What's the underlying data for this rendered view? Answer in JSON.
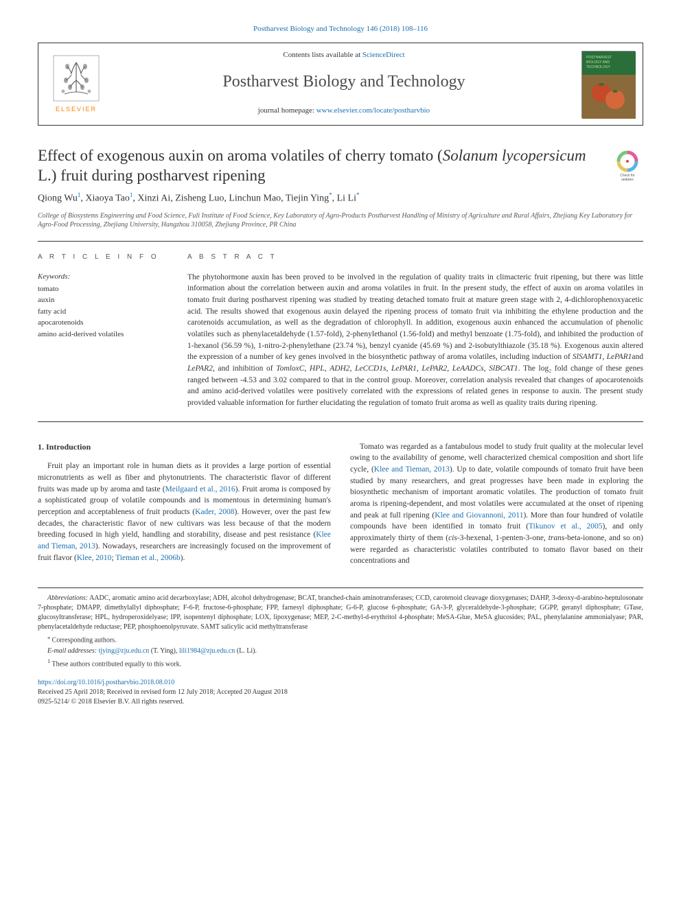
{
  "top_link": "Postharvest Biology and Technology 146 (2018) 108–116",
  "header": {
    "contents_prefix": "Contents lists available at ",
    "contents_link": "ScienceDirect",
    "journal_name": "Postharvest Biology and Technology",
    "homepage_prefix": "journal homepage: ",
    "homepage_url": "www.elsevier.com/locate/postharvbio",
    "elsevier_label": "ELSEVIER",
    "cover_text": "POSTHARVEST BIOLOGY AND TECHNOLOGY"
  },
  "title": {
    "pre": "Effect of exogenous auxin on aroma volatiles of cherry tomato (",
    "italic": "Solanum lycopersicum",
    "post": " L.) fruit during postharvest ripening"
  },
  "check_updates_label": "Check for updates",
  "authors_html": "Qiong Wu<sup>1</sup>, Xiaoya Tao<sup>1</sup>, Xinzi Ai, Zisheng Luo, Linchun Mao, Tiejin Ying<sup>*</sup>, Li Li<sup>*</sup>",
  "affiliation": "College of Biosystems Engineering and Food Science, Fuli Institute of Food Science, Key Laboratory of Agro-Products Postharvest Handling of Ministry of Agriculture and Rural Affairs, Zhejiang Key Laboratory for Agro-Food Processing, Zhejiang University, Hangzhou 310058, Zhejiang Province, PR China",
  "article_info_label": "A R T I C L E  I N F O",
  "abstract_label": "A B S T R A C T",
  "keywords_label": "Keywords:",
  "keywords": [
    "tomato",
    "auxin",
    "fatty acid",
    "apocarotenoids",
    "amino acid-derived volatiles"
  ],
  "abstract": "The phytohormone auxin has been proved to be involved in the regulation of quality traits in climacteric fruit ripening, but there was little information about the correlation between auxin and aroma volatiles in fruit. In the present study, the effect of auxin on aroma volatiles in tomato fruit during postharvest ripening was studied by treating detached tomato fruit at mature green stage with 2, 4-dichlorophenoxyacetic acid. The results showed that exogenous auxin delayed the ripening process of tomato fruit via inhibiting the ethylene production and the carotenoids accumulation, as well as the degradation of chlorophyll. In addition, exogenous auxin enhanced the accumulation of phenolic volatiles such as phenylacetaldehyde (1.57-fold), 2-phenylethanol (1.56-fold) and methyl benzoate (1.75-fold), and inhibited the production of 1-hexanol (56.59 %), 1-nitro-2-phenylethane (23.74 %), benzyl cyanide (45.69 %) and 2-isobutylthiazole (35.18 %). Exogenous auxin altered the expression of a number of key genes involved in the biosynthetic pathway of aroma volatiles, including induction of SlSAMT1, LePAR1and LePAR2, and inhibition of TomloxC, HPL, ADH2, LeCCD1s, LePAR1, LePAR2, LeAADCs, SlBCAT1. The log₂ fold change of these genes ranged between -4.53 and 3.02 compared to that in the control group. Moreover, correlation analysis revealed that changes of apocarotenoids and amino acid-derived volatiles were positively correlated with the expressions of related genes in response to auxin. The present study provided valuable information for further elucidating the regulation of tomato fruit aroma as well as quality traits during ripening.",
  "intro_heading": "1. Introduction",
  "intro_para1": "Fruit play an important role in human diets as it provides a large portion of essential micronutrients as well as fiber and phytonutrients. The characteristic flavor of different fruits was made up by aroma and taste (Meilgaard et al., 2016). Fruit aroma is composed by a sophisticated group of volatile compounds and is momentous in determining human's perception and acceptableness of fruit products (Kader, 2008). However, over the past few decades, the characteristic flavor of new cultivars was less because of that the modern breeding focused in high yield, handling and storability, disease and pest resistance (Klee and Tieman, 2013). Nowadays, researchers are increasingly focused on the improvement of fruit flavor (Klee, 2010; Tieman et al., 2006b).",
  "intro_para2": "Tomato was regarded as a fantabulous model to study fruit quality at the molecular level owing to the availability of genome, well characterized chemical composition and short life cycle, (Klee and Tieman, 2013). Up to date, volatile compounds of tomato fruit have been studied by many researchers, and great progresses have been made in exploring the biosynthetic mechanism of important aromatic volatiles. The production of tomato fruit aroma is ripening-dependent, and most volatiles were accumulated at the onset of ripening and peak at full ripening (Klee and Giovannoni, 2011). More than four hundred of volatile compounds have been identified in tomato fruit (Tikunov et al., 2005), and only approximately thirty of them (cis-3-hexenal, 1-penten-3-one, trans-beta-ionone, and so on) were regarded as characteristic volatiles contributed to tomato flavor based on their concentrations and",
  "footnotes": {
    "abbr_label": "Abbreviations:",
    "abbr_text": " AADC, aromatic amino acid decarboxylase; ADH, alcohol dehydrogenase; BCAT, branched-chain aminotransferases; CCD, carotenoid cleavage dioxygenases; DAHP, 3-deoxy-d-arabino-heptulosonate 7-phosphate; DMAPP, dimethylallyl diphosphate; F-6-P, fructose-6-phosphate; FPP, farnesyl diphosphate; G-6-P, glucose 6-phosphate; GA-3-P, glyceraldehyde-3-phosphate; GGPP, geranyl diphosphate; GTase, glucosyltransferase; HPL, hydroperoxidelyase; IPP, isopentenyl diphosphate; LOX, lipoxygenase; MEP, 2-C-methyl-d-erythritol 4-phosphate; MeSA-Glue, MeSA glucosides; PAL, phenylalanine ammonialyase; PAR, phenylacetaldehyde reductase; PEP, phosphoenolpyruvate. SAMT salicylic acid methyltransferase",
    "corr": "Corresponding authors.",
    "email_label": "E-mail addresses:",
    "email1": "tjying@zju.edu.cn",
    "email1_name": " (T. Ying), ",
    "email2": "lili1984@zju.edu.cn",
    "email2_name": " (L. Li).",
    "contrib": "These authors contributed equally to this work."
  },
  "footer": {
    "doi": "https://doi.org/10.1016/j.postharvbio.2018.08.010",
    "received": "Received 25 April 2018; Received in revised form 12 July 2018; Accepted 20 August 2018",
    "copyright": "0925-5214/ © 2018 Elsevier B.V. All rights reserved."
  },
  "colors": {
    "link": "#1a6fb0",
    "text": "#333333",
    "orange": "#ff7b00",
    "cover_green": "#2a6e3a",
    "cover_brown": "#7a5a2a"
  }
}
